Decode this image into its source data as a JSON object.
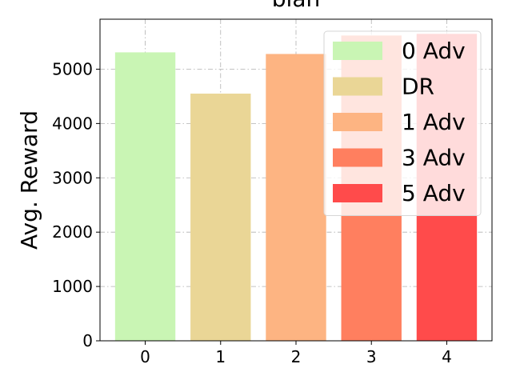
{
  "chart_data": {
    "type": "bar",
    "title": "blah",
    "xlabel": "",
    "ylabel": "Avg. Reward",
    "categories": [
      "0",
      "1",
      "2",
      "3",
      "4"
    ],
    "values": [
      5310,
      4550,
      5280,
      5620,
      5650
    ],
    "bar_labels": [
      "0 Adv",
      "DR",
      "1 Adv",
      "3 Adv",
      "5 Adv"
    ],
    "bar_colors": [
      "#c9f5b4",
      "#ead696",
      "#fdb482",
      "#ff7f5f",
      "#ff4b4b"
    ],
    "ylim": [
      0,
      5920
    ],
    "yticks": [
      0,
      1000,
      2000,
      3000,
      4000,
      5000
    ],
    "xlim": [
      -0.6,
      4.6
    ],
    "grid": true,
    "legend": {
      "placement": "top-right",
      "entries": [
        "0 Adv",
        "DR",
        "1 Adv",
        "3 Adv",
        "5 Adv"
      ]
    }
  }
}
